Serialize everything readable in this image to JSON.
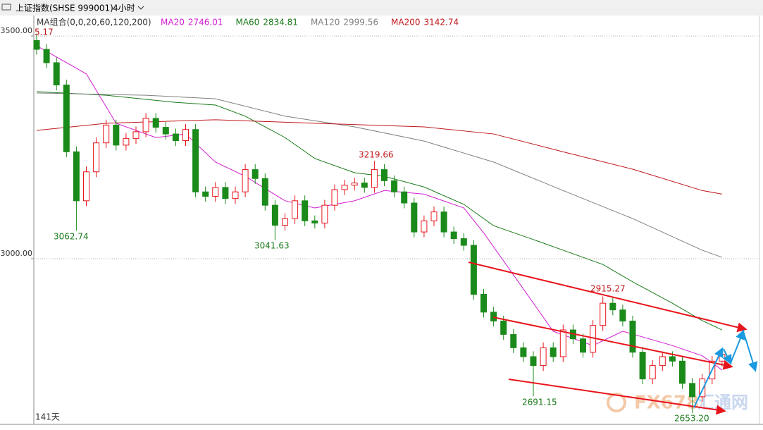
{
  "chart_data": {
    "type": "candlestick",
    "title": "上证指数(SHSE 999001)",
    "period": "4小时",
    "indicator": "MA组合(0,0,20,60,120,200)",
    "days": "141天",
    "watermark": [
      "FX678",
      "汇通网"
    ],
    "annotations": [
      "5.17",
      "3062.74",
      "3041.63",
      "3219.66",
      "2915.27",
      "2691.15",
      "2653.20"
    ],
    "ylim": [
      2628,
      3546
    ],
    "yticks": [
      {
        "value": 3000,
        "label": "3000.00"
      },
      {
        "value": 3500,
        "label": "3500.00"
      }
    ],
    "up_color": "#e8141b",
    "down_color": "#1a8a1a",
    "open": [
      3490,
      3470,
      3440,
      3390,
      3240,
      3130,
      3195,
      3260,
      3300,
      3255,
      3270,
      3285,
      3315,
      3295,
      3280,
      3265,
      3290,
      3150,
      3140,
      3160,
      3135,
      3150,
      3200,
      3180,
      3120,
      3075,
      3090,
      3130,
      3085,
      3080,
      3120,
      3155,
      3165,
      3170,
      3160,
      3200,
      3175,
      3150,
      3125,
      3060,
      3085,
      3105,
      3060,
      3045,
      3030,
      2920,
      2880,
      2860,
      2830,
      2800,
      2780,
      2760,
      2800,
      2780,
      2840,
      2820,
      2790,
      2850,
      2900,
      2885,
      2860,
      2790,
      2730,
      2760,
      2780,
      2770,
      2720,
      2690,
      2730,
      2770
    ],
    "high": [
      3505.17,
      3482,
      3452,
      3402,
      3252,
      3207,
      3272,
      3312,
      3312,
      3282,
      3297,
      3327,
      3327,
      3307,
      3292,
      3302,
      3302,
      3162,
      3172,
      3172,
      3162,
      3212,
      3212,
      3192,
      3132,
      3102,
      3142,
      3142,
      3097,
      3132,
      3167,
      3177,
      3182,
      3182,
      3219.66,
      3212,
      3187,
      3162,
      3137,
      3097,
      3117,
      3117,
      3072,
      3057,
      3042,
      2932,
      2892,
      2872,
      2842,
      2812,
      2792,
      2812,
      2812,
      2852,
      2852,
      2832,
      2862,
      2915.27,
      2912,
      2897,
      2872,
      2802,
      2772,
      2792,
      2792,
      2782,
      2732,
      2742,
      2782,
      2797
    ],
    "low": [
      3458,
      3428,
      3378,
      3228,
      3062.74,
      3118,
      3183,
      3248,
      3243,
      3243,
      3258,
      3273,
      3283,
      3268,
      3253,
      3253,
      3138,
      3128,
      3128,
      3123,
      3123,
      3138,
      3168,
      3108,
      3041.63,
      3063,
      3078,
      3073,
      3068,
      3068,
      3108,
      3143,
      3153,
      3148,
      3148,
      3163,
      3138,
      3113,
      3048,
      3048,
      3073,
      3048,
      3033,
      3018,
      2908,
      2868,
      2848,
      2818,
      2788,
      2768,
      2691.15,
      2748,
      2768,
      2768,
      2808,
      2778,
      2778,
      2838,
      2873,
      2848,
      2778,
      2718,
      2718,
      2748,
      2758,
      2708,
      2653.2,
      2678,
      2718,
      2758
    ],
    "close": [
      3470,
      3440,
      3390,
      3240,
      3130,
      3195,
      3260,
      3300,
      3255,
      3270,
      3285,
      3315,
      3295,
      3280,
      3265,
      3290,
      3150,
      3140,
      3160,
      3135,
      3150,
      3200,
      3180,
      3120,
      3075,
      3090,
      3130,
      3085,
      3080,
      3120,
      3155,
      3165,
      3170,
      3160,
      3200,
      3175,
      3150,
      3125,
      3060,
      3085,
      3105,
      3060,
      3045,
      3030,
      2920,
      2880,
      2860,
      2830,
      2800,
      2780,
      2760,
      2800,
      2780,
      2840,
      2820,
      2790,
      2850,
      2900,
      2885,
      2860,
      2790,
      2730,
      2760,
      2780,
      2770,
      2720,
      2690,
      2730,
      2770,
      2785
    ],
    "series": [
      {
        "name": "MA20",
        "legend_value": "2746.01",
        "color": "#d21dd2",
        "x": [
          0,
          5,
          8,
          12,
          15,
          18,
          21,
          25,
          28,
          32,
          35,
          39,
          43,
          45,
          49,
          52,
          56,
          59,
          64,
          67,
          69
        ],
        "values": [
          3478,
          3415,
          3304,
          3272,
          3280,
          3217,
          3185,
          3130,
          3114,
          3130,
          3153,
          3145,
          3114,
          3058,
          2932,
          2837,
          2805,
          2837,
          2805,
          2782,
          2750
        ]
      },
      {
        "name": "MA60",
        "legend_value": "2834.81",
        "color": "#1a7a1a",
        "x": [
          0,
          7,
          14,
          18,
          21,
          25,
          28,
          32,
          35,
          39,
          43,
          46,
          50,
          53,
          57,
          60,
          64,
          67,
          69
        ],
        "values": [
          3375,
          3367,
          3351,
          3345,
          3320,
          3272,
          3225,
          3193,
          3185,
          3161,
          3122,
          3074,
          3043,
          3019,
          2987,
          2948,
          2900,
          2861,
          2840
        ]
      },
      {
        "name": "MA120",
        "legend_value": "2999.56",
        "color": "#808080",
        "x": [
          0,
          11,
          18,
          25,
          32,
          39,
          46,
          53,
          60,
          67,
          69
        ],
        "values": [
          3372,
          3367,
          3359,
          3320,
          3296,
          3264,
          3217,
          3153,
          3090,
          3019,
          3003
        ]
      },
      {
        "name": "MA200",
        "legend_value": "3142.74",
        "color": "#c0171b",
        "x": [
          0,
          7,
          18,
          28,
          39,
          46,
          53,
          60,
          67,
          69
        ],
        "values": [
          3288,
          3304,
          3312,
          3304,
          3296,
          3280,
          3240,
          3201,
          3153,
          3145
        ]
      }
    ]
  }
}
